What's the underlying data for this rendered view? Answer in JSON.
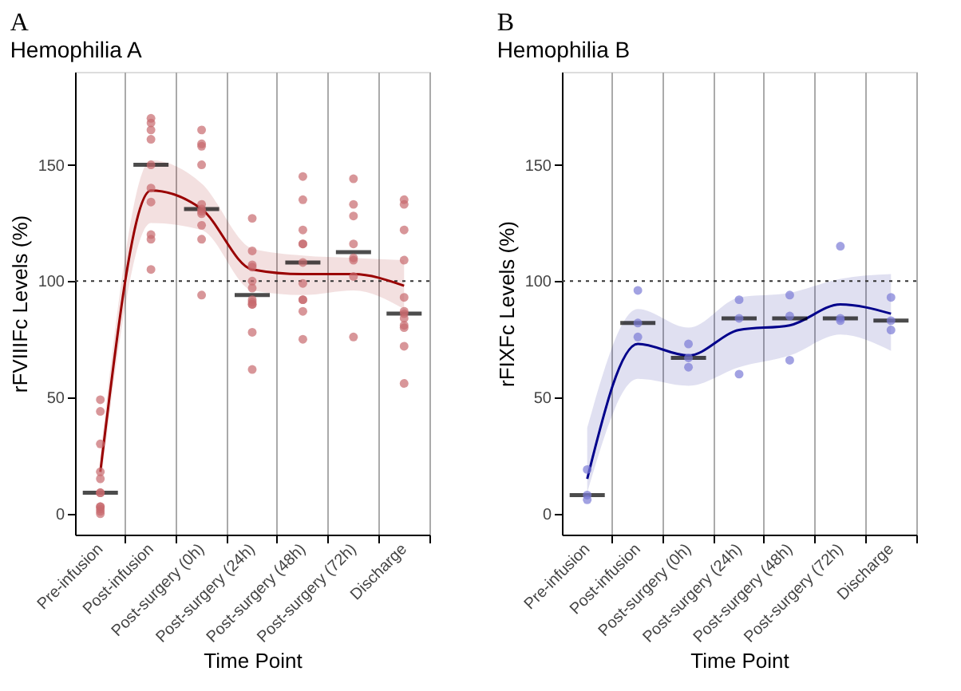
{
  "chart_data": [
    {
      "type": "scatter",
      "title": "A",
      "subtitle": "Hemophilia A",
      "xlabel": "Time Point",
      "ylabel": "rFVIIIFc Levels (%)",
      "categories": [
        "Pre-infusion",
        "Post-infusion",
        "Post-surgery (0h)",
        "Post-surgery (24h)",
        "Post-surgery (48h)",
        "Post-surgery (72h)",
        "Discharge"
      ],
      "ylim": [
        -9,
        190
      ],
      "yticks": [
        0,
        50,
        100,
        150
      ],
      "grid": "x",
      "ref_lines": [
        {
          "axis": "y",
          "value": 100,
          "line_style": "dotted",
          "color": "#333333"
        }
      ],
      "series": [
        {
          "marker": "circle",
          "color": "#c8696d",
          "x": [
            "Pre-infusion",
            "Pre-infusion",
            "Pre-infusion",
            "Pre-infusion",
            "Pre-infusion",
            "Pre-infusion",
            "Pre-infusion",
            "Pre-infusion",
            "Pre-infusion",
            "Pre-infusion",
            "Pre-infusion",
            "Pre-infusion",
            "Post-infusion",
            "Post-infusion",
            "Post-infusion",
            "Post-infusion",
            "Post-infusion",
            "Post-infusion",
            "Post-infusion",
            "Post-infusion",
            "Post-infusion",
            "Post-infusion",
            "Post-surgery (0h)",
            "Post-surgery (0h)",
            "Post-surgery (0h)",
            "Post-surgery (0h)",
            "Post-surgery (0h)",
            "Post-surgery (0h)",
            "Post-surgery (0h)",
            "Post-surgery (0h)",
            "Post-surgery (0h)",
            "Post-surgery (0h)",
            "Post-surgery (0h)",
            "Post-surgery (24h)",
            "Post-surgery (24h)",
            "Post-surgery (24h)",
            "Post-surgery (24h)",
            "Post-surgery (24h)",
            "Post-surgery (24h)",
            "Post-surgery (24h)",
            "Post-surgery (24h)",
            "Post-surgery (24h)",
            "Post-surgery (24h)",
            "Post-surgery (24h)",
            "Post-surgery (24h)",
            "Post-surgery (48h)",
            "Post-surgery (48h)",
            "Post-surgery (48h)",
            "Post-surgery (48h)",
            "Post-surgery (48h)",
            "Post-surgery (48h)",
            "Post-surgery (48h)",
            "Post-surgery (48h)",
            "Post-surgery (48h)",
            "Post-surgery (48h)",
            "Post-surgery (48h)",
            "Post-surgery (72h)",
            "Post-surgery (72h)",
            "Post-surgery (72h)",
            "Post-surgery (72h)",
            "Post-surgery (72h)",
            "Post-surgery (72h)",
            "Post-surgery (72h)",
            "Post-surgery (72h)",
            "Discharge",
            "Discharge",
            "Discharge",
            "Discharge",
            "Discharge",
            "Discharge",
            "Discharge",
            "Discharge",
            "Discharge",
            "Discharge",
            "Discharge",
            "Discharge"
          ],
          "values": [
            49,
            44,
            30,
            18,
            15,
            9,
            9,
            3,
            3,
            2,
            1,
            0,
            170,
            168,
            165,
            161,
            150,
            140,
            134,
            120,
            118,
            105,
            165,
            159,
            158,
            150,
            133,
            131,
            130,
            129,
            124,
            118,
            94,
            127,
            113,
            107,
            106,
            100,
            97,
            92,
            91,
            90,
            90,
            78,
            62,
            145,
            135,
            122,
            116,
            116,
            108,
            99,
            92,
            92,
            87,
            75,
            144,
            133,
            128,
            116,
            110,
            109,
            102,
            76,
            135,
            133,
            122,
            109,
            93,
            87,
            86,
            84,
            81,
            80,
            72,
            56
          ]
        },
        {
          "type": "box",
          "color": "#000000",
          "boxes": [
            {
              "low": 9,
              "q1": 9,
              "median": 9,
              "q3": 9,
              "high": 9
            },
            {
              "low": 150,
              "q1": 150,
              "median": 150,
              "q3": 150,
              "high": 150
            },
            {
              "low": 131,
              "q1": 131,
              "median": 131,
              "q3": 131,
              "high": 131
            },
            {
              "low": 94,
              "q1": 94,
              "median": 94,
              "q3": 94,
              "high": 94
            },
            {
              "low": 108,
              "q1": 108,
              "median": 108,
              "q3": 108,
              "high": 108
            },
            {
              "low": 112.5,
              "q1": 112.5,
              "median": 112.5,
              "q3": 112.5,
              "high": 112.5
            },
            {
              "low": 86,
              "q1": 86,
              "median": 86,
              "q3": 86,
              "high": 86
            }
          ]
        },
        {
          "type": "line",
          "color": "#990000",
          "values": [
            18,
            139,
            131,
            105,
            103,
            103,
            98
          ],
          "lower": [
            12,
            125,
            122,
            96,
            94,
            96,
            88
          ],
          "upper": [
            25,
            152,
            142,
            114,
            111,
            110,
            109
          ]
        }
      ]
    },
    {
      "type": "scatter",
      "title": "B",
      "subtitle": "Hemophilia B",
      "xlabel": "Time Point",
      "ylabel": "rFIXFc Levels (%)",
      "categories": [
        "Pre-infusion",
        "Post-infusion",
        "Post-surgery (0h)",
        "Post-surgery (24h)",
        "Post-surgery (48h)",
        "Post-surgery (72h)",
        "Discharge"
      ],
      "ylim": [
        -9,
        190
      ],
      "yticks": [
        0,
        50,
        100,
        150
      ],
      "grid": "x",
      "ref_lines": [
        {
          "axis": "y",
          "value": 100,
          "line_style": "dotted",
          "color": "#333333"
        }
      ],
      "series": [
        {
          "marker": "circle",
          "color": "#7b7bd6",
          "x": [
            "Pre-infusion",
            "Pre-infusion",
            "Pre-infusion",
            "Post-infusion",
            "Post-infusion",
            "Post-infusion",
            "Post-surgery (0h)",
            "Post-surgery (0h)",
            "Post-surgery (0h)",
            "Post-surgery (24h)",
            "Post-surgery (24h)",
            "Post-surgery (24h)",
            "Post-surgery (48h)",
            "Post-surgery (48h)",
            "Post-surgery (48h)",
            "Post-surgery (72h)",
            "Post-surgery (72h)",
            "Post-surgery (72h)",
            "Discharge",
            "Discharge",
            "Discharge"
          ],
          "values": [
            19,
            8,
            6,
            96,
            82,
            76,
            73,
            67,
            63,
            92,
            84,
            60,
            94,
            85,
            66,
            115,
            84,
            83,
            93,
            83,
            79
          ]
        },
        {
          "type": "box",
          "color": "#000000",
          "boxes": [
            {
              "low": 8,
              "q1": 8,
              "median": 8,
              "q3": 8,
              "high": 8
            },
            {
              "low": 82,
              "q1": 82,
              "median": 82,
              "q3": 82,
              "high": 82
            },
            {
              "low": 67,
              "q1": 67,
              "median": 67,
              "q3": 67,
              "high": 67
            },
            {
              "low": 84,
              "q1": 84,
              "median": 84,
              "q3": 84,
              "high": 84
            },
            {
              "low": 84,
              "q1": 84,
              "median": 84,
              "q3": 84,
              "high": 84
            },
            {
              "low": 84,
              "q1": 84,
              "median": 84,
              "q3": 84,
              "high": 84
            },
            {
              "low": 83,
              "q1": 83,
              "median": 83,
              "q3": 83,
              "high": 83
            }
          ]
        },
        {
          "type": "line",
          "color": "#00008b",
          "values": [
            15,
            73,
            68,
            79,
            81,
            90,
            86
          ],
          "lower": [
            9,
            58,
            55,
            63,
            68,
            77,
            70
          ],
          "upper": [
            37,
            88,
            80,
            93,
            95,
            101,
            103
          ]
        }
      ]
    }
  ]
}
